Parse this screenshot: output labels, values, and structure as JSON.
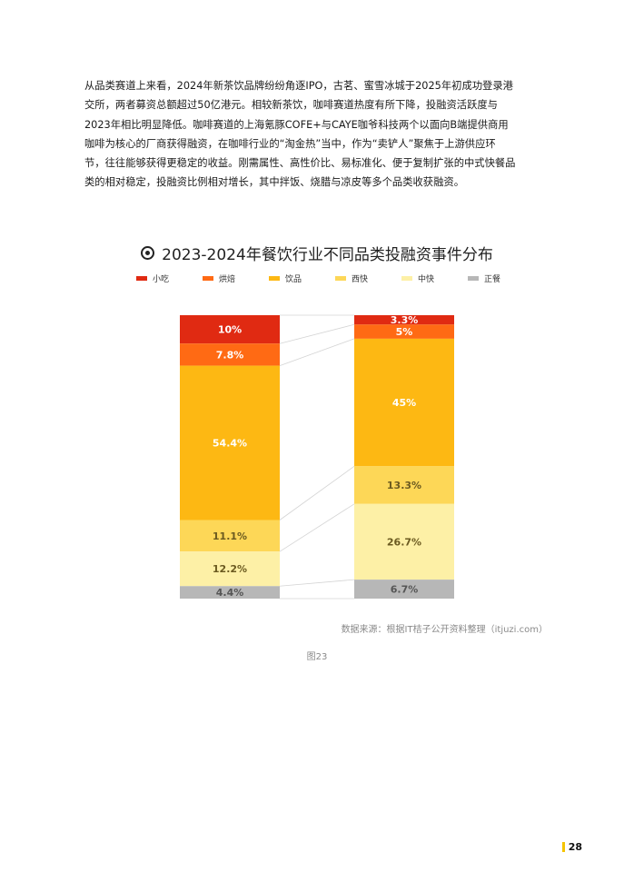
{
  "paragraph": [
    "从品类赛道上来看，2024年新茶饮品牌纷纷角逐IPO，古茗、蜜雪冰城于2025年初成功登录港",
    "交所，两者募资总额超过50亿港元。相较新茶饮，咖啡赛道热度有所下降，投融资活跃度与",
    "2023年相比明显降低。咖啡赛道的上海氪豚COFE+与CAYE咖爷科技两个以面向B端提供商用",
    "咖啡为核心的厂商获得融资，在咖啡行业的“淘金热”当中，作为“卖铲人”聚焦于上游供应环",
    "节，往往能够获得更稳定的收益。刚需属性、高性价比、易标准化、便于复制扩张的中式快餐品",
    "类的相对稳定，投融资比例相对增长，其中拌饭、烧腊与凉皮等多个品类收获融资。"
  ],
  "chart_data": {
    "type": "bar",
    "stacked": true,
    "title": "2023-2024年餐饮行业不同品类投融资事件分布",
    "unit": "%",
    "legend_position": "top",
    "colors": {
      "小吃": "#e02a12",
      "烘焙": "#ff6a14",
      "饮品": "#fdb813",
      "西快": "#fdd757",
      "中快": "#fdf0a6",
      "正餐": "#b7b7b7"
    },
    "series": [
      {
        "name": "小吃",
        "labels": [
          "10%",
          "3.3%"
        ],
        "values": [
          10,
          3.3
        ]
      },
      {
        "name": "烘焙",
        "labels": [
          "7.8%",
          "5%"
        ],
        "values": [
          7.8,
          5
        ]
      },
      {
        "name": "饮品",
        "labels": [
          "54.4%",
          "45%"
        ],
        "values": [
          54.4,
          45
        ]
      },
      {
        "name": "西快",
        "labels": [
          "11.1%",
          "13.3%"
        ],
        "values": [
          11.1,
          13.3
        ]
      },
      {
        "name": "中快",
        "labels": [
          "12.2%",
          "26.7%"
        ],
        "values": [
          12.2,
          26.7
        ]
      },
      {
        "name": "正餐",
        "labels": [
          "4.4%",
          "6.7%"
        ],
        "values": [
          4.4,
          6.7
        ]
      }
    ]
  },
  "source": "数据来源：根据IT桔子公开资料整理（itjuzi.com）",
  "caption": "图23",
  "page_number": "28",
  "page_mark_color": "#f5c400"
}
